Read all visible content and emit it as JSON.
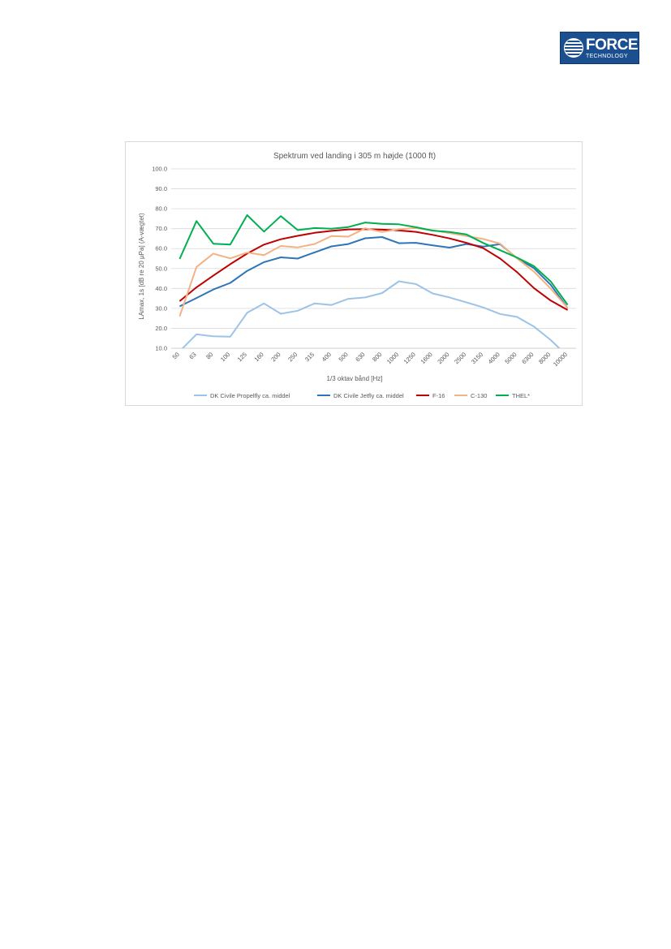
{
  "logo": {
    "word": "FORCE",
    "sub": "TECHNOLOGY"
  },
  "chart_data": {
    "type": "line",
    "title": "Spektrum ved landing i 305 m højde (1000 ft)",
    "xlabel": "1/3 oktav bånd [Hz]",
    "ylabel": "LAmax, 1s [dB re 20 µPa] (A-vægtet)",
    "ylim": [
      10,
      100
    ],
    "yticks": [
      "10.0",
      "20.0",
      "30.0",
      "40.0",
      "50.0",
      "60.0",
      "70.0",
      "80.0",
      "90.0",
      "100.0"
    ],
    "grid": true,
    "legend_position": "bottom",
    "categories": [
      "50",
      "63",
      "80",
      "100",
      "125",
      "160",
      "200",
      "250",
      "315",
      "400",
      "500",
      "630",
      "800",
      "1000",
      "1250",
      "1600",
      "2000",
      "2500",
      "3150",
      "4000",
      "5000",
      "6300",
      "8000",
      "10000"
    ],
    "series": [
      {
        "name": "DK Civile Propelfly ca. middel",
        "color": "#9dc3e6",
        "values": [
          8.5,
          17,
          16,
          15.8,
          27.8,
          32.5,
          27.3,
          28.8,
          32.5,
          31.7,
          34.8,
          35.5,
          37.7,
          43.6,
          42.2,
          37.5,
          35.5,
          33,
          30.5,
          27.2,
          25.7,
          20.9,
          14.1,
          6
        ]
      },
      {
        "name": "DK Civile Jetfly ca. middel",
        "color": "#2e75b6",
        "values": [
          31,
          35.2,
          39.5,
          42.8,
          48.8,
          53.2,
          55.6,
          55,
          58.1,
          61.1,
          62.3,
          65.2,
          65.8,
          62.7,
          62.9,
          61.6,
          60.5,
          62.3,
          61,
          62.2,
          55.2,
          50.2,
          41.8,
          30.1
        ]
      },
      {
        "name": "F-16",
        "color": "#c00000",
        "values": [
          33.6,
          40.6,
          46.5,
          52.2,
          57.5,
          62,
          64.7,
          66.4,
          67.9,
          68.9,
          69.6,
          69.8,
          69.5,
          69.1,
          68.4,
          66.9,
          65.1,
          62.9,
          60.2,
          55,
          48.2,
          40.2,
          33.9,
          29.2
        ]
      },
      {
        "name": "C-130",
        "color": "#f4b183",
        "values": [
          26,
          50.8,
          57.5,
          55.1,
          58,
          56.7,
          61.3,
          60.6,
          62.3,
          66.3,
          66,
          70.2,
          68.3,
          69.7,
          70.3,
          69.2,
          67.8,
          66.3,
          64.8,
          62.5,
          55.1,
          48.5,
          39.9,
          30.2
        ]
      },
      {
        "name": "THEL*",
        "color": "#00b050",
        "values": [
          54.8,
          73.8,
          62.4,
          62,
          76.8,
          68.5,
          76.3,
          69.3,
          70.3,
          70,
          70.8,
          73.1,
          72.4,
          72.2,
          70.7,
          69,
          68.3,
          67.1,
          62.8,
          59.2,
          55.5,
          51.2,
          43.5,
          31.8
        ]
      }
    ]
  }
}
